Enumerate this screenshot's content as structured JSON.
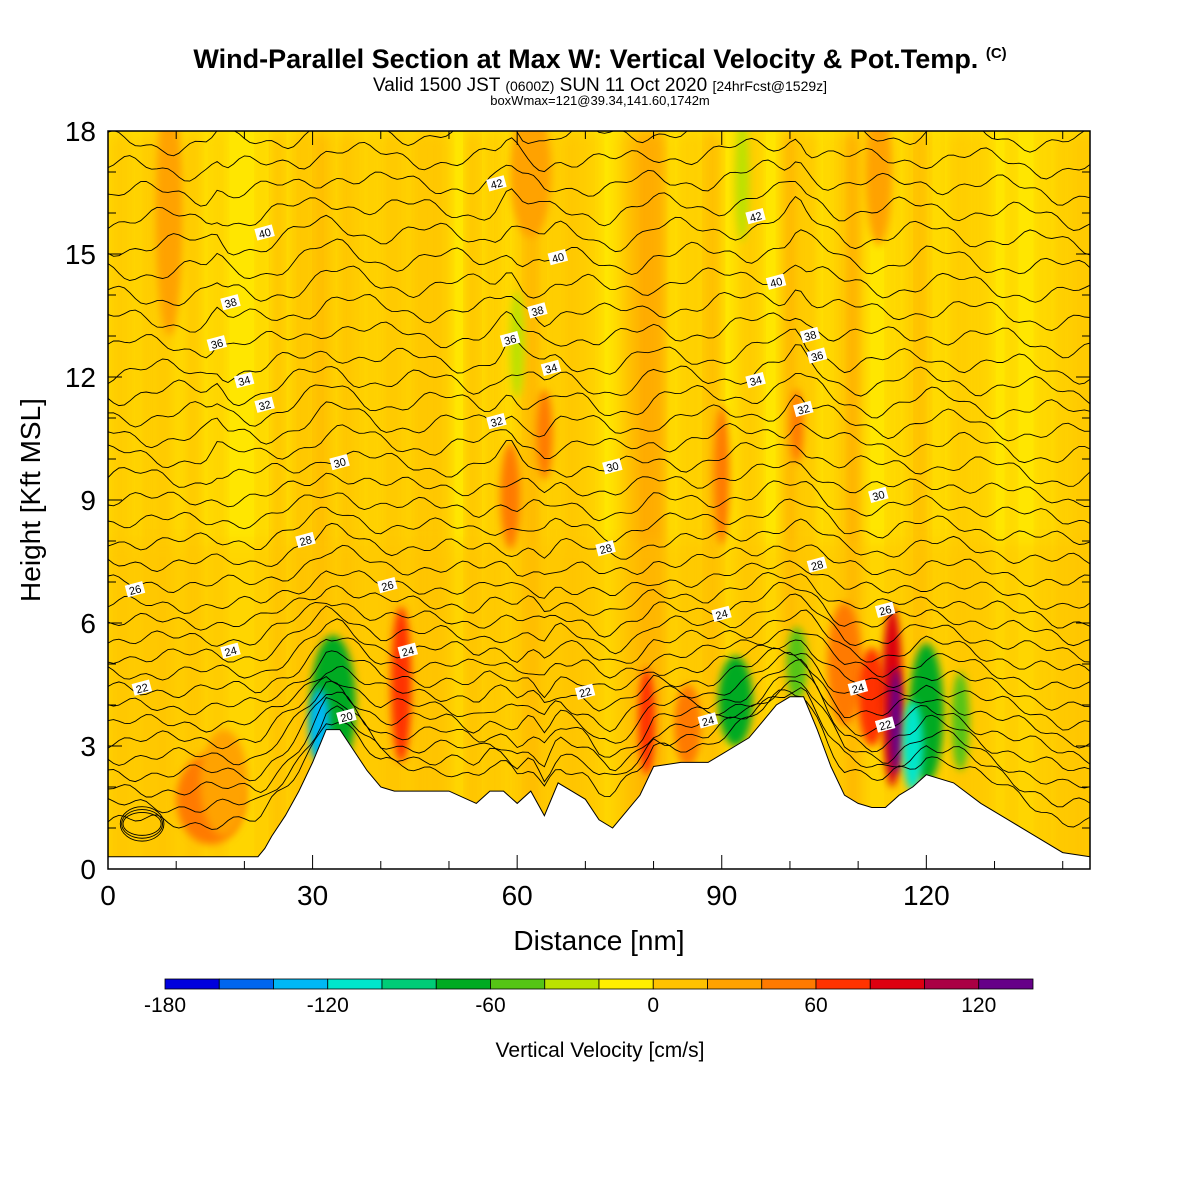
{
  "title": {
    "main": "Wind-Parallel Section at Max W: Vertical Velocity & Pot.Temp.",
    "mark": "(C)",
    "valid_a": "Valid 1500 JST ",
    "valid_b": "(0600Z)",
    "valid_c": " SUN 11 Oct 2020 ",
    "valid_d": "[24hrFcst@1529z]",
    "box": "boxWmax=121@39.34,141.60,1742m"
  },
  "chart_data": {
    "type": "heatmap",
    "xlabel": "Distance [nm]",
    "ylabel": "Height [Kft MSL]",
    "xlim": [
      0,
      144
    ],
    "ylim": [
      0,
      18
    ],
    "xticks": [
      0,
      30,
      60,
      90,
      120
    ],
    "yticks": [
      0,
      3,
      6,
      9,
      12,
      15,
      18
    ],
    "colorbar": {
      "label": "Vertical Velocity [cm/s]",
      "ticks": [
        -180,
        -120,
        -60,
        0,
        60,
        120
      ],
      "range": [
        -180,
        140
      ],
      "step": 20,
      "colors": [
        "#0000dd",
        "#0066ee",
        "#00b8f5",
        "#00e6cc",
        "#00cc77",
        "#00aa22",
        "#55c415",
        "#bbe200",
        "#ffee00",
        "#ffc200",
        "#ffa200",
        "#ff7a00",
        "#ff3300",
        "#dd0011",
        "#aa0044",
        "#660088"
      ]
    },
    "terrain": [
      [
        0,
        0.3
      ],
      [
        22,
        0.3
      ],
      [
        23,
        0.5
      ],
      [
        24,
        0.8
      ],
      [
        26,
        1.3
      ],
      [
        28,
        1.9
      ],
      [
        30,
        2.6
      ],
      [
        31,
        3.0
      ],
      [
        32,
        3.4
      ],
      [
        34,
        3.4
      ],
      [
        36,
        2.9
      ],
      [
        38,
        2.4
      ],
      [
        40,
        2.0
      ],
      [
        42,
        1.9
      ],
      [
        46,
        1.9
      ],
      [
        50,
        1.9
      ],
      [
        54,
        1.6
      ],
      [
        56,
        1.9
      ],
      [
        58,
        1.9
      ],
      [
        60,
        1.6
      ],
      [
        62,
        1.9
      ],
      [
        64,
        1.3
      ],
      [
        66,
        2.1
      ],
      [
        68,
        1.9
      ],
      [
        70,
        1.7
      ],
      [
        72,
        1.2
      ],
      [
        74,
        1.0
      ],
      [
        76,
        1.4
      ],
      [
        78,
        1.8
      ],
      [
        80,
        2.5
      ],
      [
        84,
        2.6
      ],
      [
        88,
        2.6
      ],
      [
        90,
        2.8
      ],
      [
        92,
        3.0
      ],
      [
        94,
        3.2
      ],
      [
        96,
        3.6
      ],
      [
        98,
        4.0
      ],
      [
        100,
        4.2
      ],
      [
        102,
        4.2
      ],
      [
        104,
        3.4
      ],
      [
        106,
        2.5
      ],
      [
        108,
        1.8
      ],
      [
        110,
        1.6
      ],
      [
        112,
        1.5
      ],
      [
        114,
        1.5
      ],
      [
        116,
        1.8
      ],
      [
        118,
        2.0
      ],
      [
        120,
        2.3
      ],
      [
        124,
        2.1
      ],
      [
        128,
        1.6
      ],
      [
        132,
        1.2
      ],
      [
        136,
        0.8
      ],
      [
        140,
        0.4
      ],
      [
        144,
        0.3
      ]
    ],
    "isentrope_labels": [
      {
        "text": "42",
        "x": 57,
        "y": 16.7
      },
      {
        "text": "42",
        "x": 95,
        "y": 15.9
      },
      {
        "text": "40",
        "x": 23,
        "y": 15.5
      },
      {
        "text": "40",
        "x": 66,
        "y": 14.9
      },
      {
        "text": "40",
        "x": 98,
        "y": 14.3
      },
      {
        "text": "38",
        "x": 18,
        "y": 13.8
      },
      {
        "text": "38",
        "x": 63,
        "y": 13.6
      },
      {
        "text": "38",
        "x": 103,
        "y": 13.0
      },
      {
        "text": "36",
        "x": 16,
        "y": 12.8
      },
      {
        "text": "36",
        "x": 59,
        "y": 12.9
      },
      {
        "text": "36",
        "x": 104,
        "y": 12.5
      },
      {
        "text": "34",
        "x": 20,
        "y": 11.9
      },
      {
        "text": "34",
        "x": 65,
        "y": 12.2
      },
      {
        "text": "34",
        "x": 95,
        "y": 11.9
      },
      {
        "text": "32",
        "x": 23,
        "y": 11.3
      },
      {
        "text": "32",
        "x": 57,
        "y": 10.9
      },
      {
        "text": "32",
        "x": 102,
        "y": 11.2
      },
      {
        "text": "30",
        "x": 34,
        "y": 9.9
      },
      {
        "text": "30",
        "x": 74,
        "y": 9.8
      },
      {
        "text": "30",
        "x": 113,
        "y": 9.1
      },
      {
        "text": "28",
        "x": 29,
        "y": 8.0
      },
      {
        "text": "28",
        "x": 73,
        "y": 7.8
      },
      {
        "text": "28",
        "x": 104,
        "y": 7.4
      },
      {
        "text": "26",
        "x": 4,
        "y": 6.8
      },
      {
        "text": "26",
        "x": 41,
        "y": 6.9
      },
      {
        "text": "26",
        "x": 114,
        "y": 6.3
      },
      {
        "text": "24",
        "x": 18,
        "y": 5.3
      },
      {
        "text": "24",
        "x": 44,
        "y": 5.3
      },
      {
        "text": "24",
        "x": 90,
        "y": 6.2
      },
      {
        "text": "22",
        "x": 5,
        "y": 4.4
      },
      {
        "text": "22",
        "x": 70,
        "y": 4.3
      },
      {
        "text": "24",
        "x": 88,
        "y": 3.6
      },
      {
        "text": "20",
        "x": 35,
        "y": 3.7
      },
      {
        "text": "24",
        "x": 110,
        "y": 4.4
      },
      {
        "text": "22",
        "x": 114,
        "y": 3.5
      }
    ],
    "updrafts": [
      {
        "x": 15,
        "y": 1.7,
        "w": 5,
        "h": 1.1,
        "v": 55
      },
      {
        "x": 17,
        "y": 2.1,
        "w": 3.5,
        "h": 1.3,
        "v": 35
      },
      {
        "x": 43,
        "y": 4.5,
        "w": 1.5,
        "h": 1.9,
        "v": 70
      },
      {
        "x": 59,
        "y": 9.1,
        "w": 1.5,
        "h": 1.3,
        "v": 50
      },
      {
        "x": 64,
        "y": 10.6,
        "w": 1.2,
        "h": 1.1,
        "v": 40
      },
      {
        "x": 79,
        "y": 3.6,
        "w": 1.2,
        "h": 1.3,
        "v": 65
      },
      {
        "x": 85,
        "y": 3.5,
        "w": 2,
        "h": 1.0,
        "v": 40
      },
      {
        "x": 90,
        "y": 9.6,
        "w": 1.2,
        "h": 1.7,
        "v": 40
      },
      {
        "x": 101,
        "y": 10.8,
        "w": 1.0,
        "h": 0.9,
        "v": 45
      },
      {
        "x": 108,
        "y": 5.0,
        "w": 2.5,
        "h": 1.5,
        "v": 55
      },
      {
        "x": 112,
        "y": 4.2,
        "w": 2,
        "h": 1.2,
        "v": 75
      },
      {
        "x": 115,
        "y": 4.2,
        "w": 1.5,
        "h": 2.2,
        "v": 95
      },
      {
        "x": 115.5,
        "y": 3.6,
        "w": 0.9,
        "h": 1.3,
        "v": 125
      },
      {
        "x": 9,
        "y": 16.0,
        "w": 2,
        "h": 3,
        "v": 25
      },
      {
        "x": 62,
        "y": 17.0,
        "w": 3,
        "h": 1.6,
        "v": 25
      },
      {
        "x": 113,
        "y": 17.0,
        "w": 2,
        "h": 1.8,
        "v": 25
      }
    ],
    "downdrafts": [
      {
        "x": 33,
        "y": 4.0,
        "w": 3.3,
        "h": 1.7,
        "v": -70
      },
      {
        "x": 31,
        "y": 3.5,
        "w": 1.5,
        "h": 0.9,
        "v": -140
      },
      {
        "x": 92,
        "y": 4.1,
        "w": 2.5,
        "h": 1.1,
        "v": -70
      },
      {
        "x": 101,
        "y": 5.0,
        "w": 1.5,
        "h": 0.9,
        "v": -55
      },
      {
        "x": 120,
        "y": 3.8,
        "w": 2.5,
        "h": 1.7,
        "v": -70
      },
      {
        "x": 118,
        "y": 3.0,
        "w": 1.5,
        "h": 1.1,
        "v": -110
      },
      {
        "x": 125,
        "y": 3.6,
        "w": 1.3,
        "h": 1.2,
        "v": -50
      },
      {
        "x": 60,
        "y": 12.8,
        "w": 1.0,
        "h": 1.3,
        "v": -35
      },
      {
        "x": 93,
        "y": 16.8,
        "w": 1.0,
        "h": 1.5,
        "v": -30
      }
    ]
  }
}
